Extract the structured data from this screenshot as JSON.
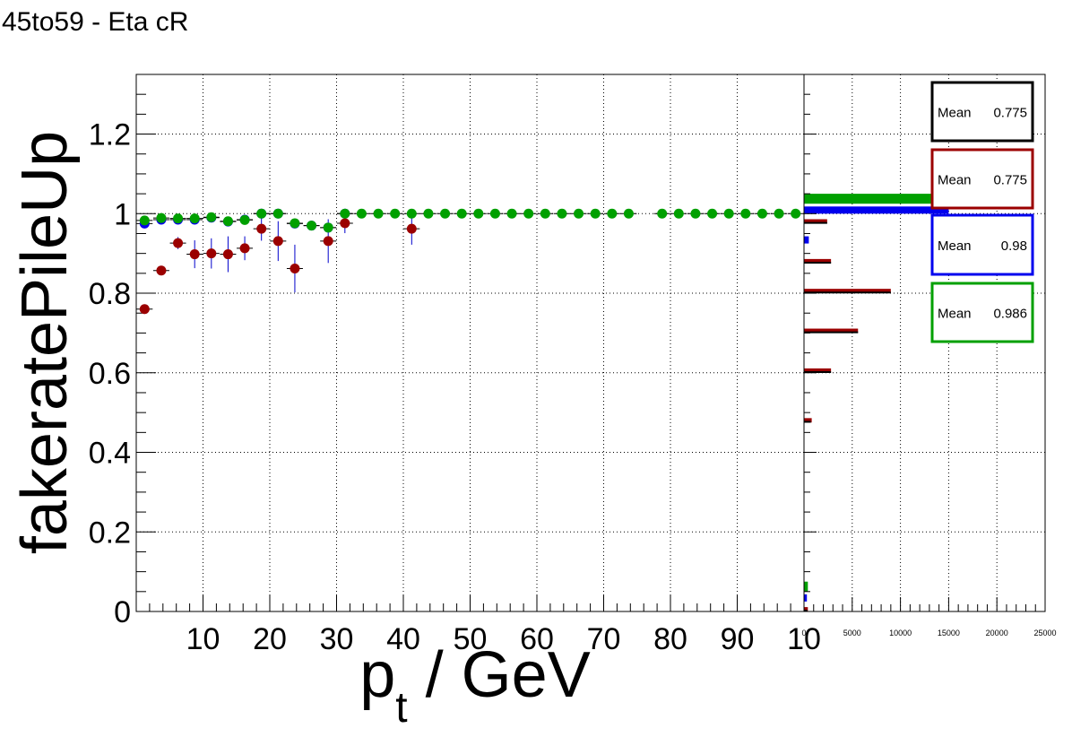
{
  "canvas_title": "45to59 - Eta cR",
  "chart_data": [
    {
      "type": "scatter",
      "xlabel": "p_t / GeV",
      "xlabel_parts": {
        "main": "p",
        "sub": "t",
        "unit": " / GeV"
      },
      "ylabel": "fakeratePileUp",
      "xlim": [
        0,
        100
      ],
      "ylim": [
        0,
        1.35
      ],
      "grid": true,
      "x_tick_labels": [
        "10",
        "20",
        "30",
        "40",
        "50",
        "60",
        "70",
        "80",
        "90",
        "10"
      ],
      "y_tick_labels": [
        "0",
        "0.2",
        "0.4",
        "0.6",
        "0.8",
        "1",
        "1.2"
      ],
      "series": [
        {
          "color": "#0000ee",
          "x": [
            1.25,
            3.75,
            6.25,
            8.75,
            11.25,
            13.75,
            16.25,
            18.75,
            21.25,
            23.75,
            26.25,
            28.75,
            31.25
          ],
          "y": [
            0.975,
            0.985,
            0.985,
            0.985,
            0.99,
            0.98,
            0.985,
            1.0,
            1.0,
            0.975,
            0.97,
            0.965,
            1.0
          ],
          "err": [
            0.01,
            0.008,
            0.008,
            0.008,
            0.008,
            0.01,
            0.01,
            0.0,
            0.0,
            0.01,
            0.01,
            0.01,
            0.0
          ]
        },
        {
          "color": "#9b0000",
          "x": [
            1.25,
            3.75,
            6.25,
            8.75,
            11.25,
            13.75,
            16.25,
            18.75,
            21.25,
            23.75,
            28.75,
            31.25,
            41.25
          ],
          "y": [
            0.76,
            0.857,
            0.926,
            0.898,
            0.9,
            0.898,
            0.913,
            0.962,
            0.931,
            0.862,
            0.931,
            0.976,
            0.962
          ],
          "err": [
            0.012,
            0.012,
            0.015,
            0.035,
            0.038,
            0.045,
            0.03,
            0.03,
            0.05,
            0.06,
            0.055,
            0.025,
            0.04
          ]
        },
        {
          "color": "#00a000",
          "x": [
            1.25,
            3.75,
            6.25,
            8.75,
            11.25,
            13.75,
            16.25,
            18.75,
            21.25,
            23.75,
            26.25,
            28.75,
            31.25,
            33.75,
            36.25,
            38.75,
            41.25,
            43.75,
            46.25,
            48.75,
            51.25,
            53.75,
            56.25,
            58.75,
            61.25,
            63.75,
            66.25,
            68.75,
            71.25,
            73.75,
            78.75,
            81.25,
            83.75,
            86.25,
            88.75,
            91.25,
            93.75,
            96.25,
            98.75
          ],
          "y": [
            0.983,
            0.989,
            0.988,
            0.988,
            0.991,
            0.981,
            0.984,
            1.0,
            1.0,
            0.976,
            0.97,
            0.965,
            1.0,
            1.0,
            1.0,
            1.0,
            1.0,
            1.0,
            1.0,
            1.0,
            1.0,
            1.0,
            1.0,
            1.0,
            1.0,
            1.0,
            1.0,
            1.0,
            1.0,
            1.0,
            1.0,
            1.0,
            1.0,
            1.0,
            1.0,
            1.0,
            1.0,
            1.0,
            1.0
          ],
          "err": [
            0.008,
            0.006,
            0.006,
            0.006,
            0.006,
            0.008,
            0.008,
            0.0,
            0.0,
            0.01,
            0.012,
            0.012,
            0.0,
            0.0,
            0.0,
            0.0,
            0.0,
            0.0,
            0.0,
            0.0,
            0.0,
            0.0,
            0.0,
            0.0,
            0.0,
            0.0,
            0.0,
            0.0,
            0.0,
            0.0,
            0.0,
            0.0,
            0.0,
            0.0,
            0.0,
            0.0,
            0.0,
            0.0,
            0.0
          ]
        }
      ]
    },
    {
      "type": "bar",
      "orientation": "horizontal",
      "xlim": [
        0,
        25000
      ],
      "x_tick_labels": [
        "0",
        "5000",
        "10000",
        "15000",
        "20000",
        "25000"
      ],
      "x_tick_values": [
        0,
        5000,
        10000,
        15000,
        20000,
        25000
      ],
      "bin_edges_y": [
        0.0,
        0.025,
        0.05,
        0.075,
        0.1,
        0.125,
        0.15,
        0.175,
        0.2,
        0.225,
        0.25,
        0.275,
        0.3,
        0.325,
        0.35,
        0.375,
        0.4,
        0.425,
        0.45,
        0.475,
        0.5,
        0.525,
        0.55,
        0.575,
        0.6,
        0.625,
        0.65,
        0.675,
        0.7,
        0.725,
        0.75,
        0.775,
        0.8,
        0.825,
        0.85,
        0.875,
        0.9,
        0.925,
        0.95,
        0.975,
        1.0,
        1.025,
        1.05,
        1.075
      ],
      "series": [
        {
          "color": "#00a000",
          "bins": {
            "0.05": 400,
            "1.025": 17000
          }
        },
        {
          "color": "#0000ee",
          "bins": {
            "0.025": 300,
            "0.925": 500,
            "1.0": 15000
          }
        },
        {
          "color": "#9b0000",
          "bins": {
            "0.0": 400,
            "0.475": 800,
            "0.6": 2800,
            "0.7": 5600,
            "0.8": 9000,
            "0.875": 2800,
            "0.975": 2400
          }
        },
        {
          "color": "#000000",
          "bins": {
            "0.0": 350,
            "0.475": 700,
            "0.6": 2800,
            "0.7": 5600,
            "0.8": 9000,
            "0.875": 2800,
            "0.975": 2400
          }
        }
      ],
      "stats_boxes": [
        {
          "label": "Mean",
          "value": "0.775",
          "color": "#000000"
        },
        {
          "label": "Mean",
          "value": "0.775",
          "color": "#9b0000"
        },
        {
          "label": "Mean",
          "value": "0.98",
          "color": "#0000ee"
        },
        {
          "label": "Mean",
          "value": "0.986",
          "color": "#00a000"
        }
      ]
    }
  ]
}
